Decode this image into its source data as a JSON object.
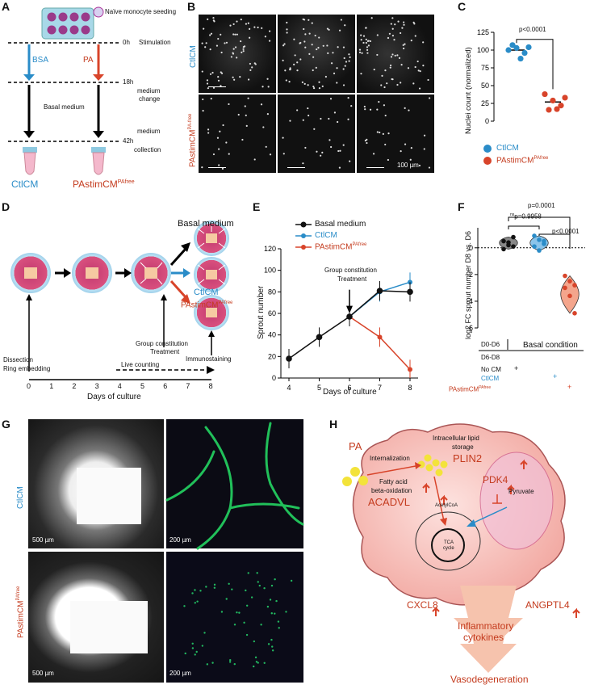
{
  "panels": {
    "A": "A",
    "B": "B",
    "C": "C",
    "D": "D",
    "E": "E",
    "F": "F",
    "G": "G",
    "H": "H"
  },
  "A": {
    "seeding": "Naïve monocyte seeding",
    "t0": "0h",
    "stim": "Stimulation",
    "bsa": "BSA",
    "pa": "PA",
    "t18": "18h",
    "medchange1": "medium",
    "medchange2": "change",
    "basal": "Basal medium",
    "t42": "42h",
    "medcoll1": "medium",
    "medcoll2": "collection",
    "ctl": "CtlCM",
    "pastim": "PAstimCM",
    "pastim_sup": "PAfree"
  },
  "B": {
    "row1": "CtlCM",
    "row2": "PAstimCM",
    "row2_sup": "PA-free",
    "scale": "100 µm"
  },
  "C": {
    "ylabel": "Nuclei count (normalized)",
    "pval": "p<0.0001",
    "legend_ctl": "CtlCM",
    "legend_pa": "PAstimCM",
    "legend_pa_sup": "PAfree"
  },
  "D": {
    "basal": "Basal medium",
    "ctl": "CtlCM",
    "pastim": "PAstimCM",
    "pastim_sup": "PAfree",
    "dissection": "Dissection",
    "ring": "Ring embedding",
    "live": "Live counting",
    "group": "Group constitution",
    "treat": "Treatment",
    "immuno": "Immunostaining",
    "xlabel": "Days of culture",
    "days": [
      "0",
      "1",
      "2",
      "3",
      "4",
      "5",
      "6",
      "7",
      "8"
    ]
  },
  "E": {
    "ylabel": "Sprout number",
    "xlabel": "Days of culture",
    "legend": [
      "Basal medium",
      "CtlCM",
      "PAstimCM"
    ],
    "legend_sup": "PAfree",
    "annot1": "Group constitution",
    "annot2": "Treatment"
  },
  "F": {
    "ylabel": "log2 FC sprout number D8 vs. D6",
    "p1": "p=0.0001",
    "p2": "p=0.9958",
    "p2_pre": "ns",
    "p3": "p<0.0001",
    "d0": "D0-D6",
    "d6": "D6-D8",
    "basal": "Basal condition",
    "nocm": "No CM",
    "ctl": "CtlCM",
    "pastim": "PAstimCM",
    "pastim_sup": "PAfree"
  },
  "G": {
    "row1": "CtlCM",
    "row2": "PAstimCM",
    "row2_sup": "PAfree",
    "s500": "500 µm",
    "s200": "200 µm"
  },
  "H": {
    "pa": "PA",
    "intern": "Internalization",
    "ils1": "Intracellular lipid",
    "ils2": "storage",
    "plin2": "PLIN2",
    "fao1": "Fatty acid",
    "fao2": "beta-oxidation",
    "acadvl": "ACADVL",
    "pdk4": "PDK4",
    "pyruvate": "Pyruvate",
    "acetyl": "AcetylCoA",
    "tca1": "TCA",
    "tca2": "cycle",
    "cxcl8": "CXCL8",
    "angptl4": "ANGPTL4",
    "infl1": "Inflammatory",
    "infl2": "cytokines",
    "vaso": "Vasodegeneration"
  },
  "chart_data": [
    {
      "type": "scatter",
      "panel": "C",
      "ylabel": "Nuclei count (normalized)",
      "ylim": [
        0,
        125
      ],
      "yticks": [
        0,
        25,
        50,
        75,
        100,
        125
      ],
      "series": [
        {
          "name": "CtlCM",
          "color": "#2a8cc8",
          "values": [
            100,
            103,
            96,
            107,
            88,
            104
          ],
          "mean": 100
        },
        {
          "name": "PAstimCMPAfree",
          "color": "#d8442a",
          "values": [
            38,
            29,
            22,
            16,
            17,
            33
          ],
          "mean": 27
        }
      ],
      "annotation": "p<0.0001"
    },
    {
      "type": "line",
      "panel": "E",
      "xlabel": "Days of culture",
      "ylabel": "Sprout number",
      "x": [
        4,
        5,
        6,
        7,
        8
      ],
      "ylim": [
        0,
        120
      ],
      "yticks": [
        0,
        20,
        40,
        60,
        80,
        100,
        120
      ],
      "series": [
        {
          "name": "Basal medium",
          "color": "#111111",
          "x": [
            4,
            5,
            6,
            7,
            8
          ],
          "values": [
            18,
            38,
            57,
            81,
            80
          ]
        },
        {
          "name": "CtlCM",
          "color": "#2a8cc8",
          "x": [
            6,
            7,
            8
          ],
          "values": [
            57,
            80,
            89
          ]
        },
        {
          "name": "PAstimCMPAfree",
          "color": "#d8442a",
          "x": [
            6,
            7,
            8
          ],
          "values": [
            57,
            38,
            8
          ]
        }
      ]
    },
    {
      "type": "violin",
      "panel": "F",
      "ylabel": "log2 FC sprout number D8 vs. D6",
      "ylim": [
        -6,
        1.5
      ],
      "yticks": [
        0,
        -2,
        -4,
        -6
      ],
      "groups": [
        {
          "name": "No CM",
          "color": "#111111",
          "values": [
            0.5,
            0.2,
            0.8,
            -0.1,
            0.4,
            0.1
          ]
        },
        {
          "name": "CtlCM",
          "color": "#2a8cc8",
          "values": [
            0.9,
            0.6,
            0.3,
            0.1,
            -0.2,
            0.5
          ]
        },
        {
          "name": "PAstimCMPAfree",
          "color": "#d8442a",
          "values": [
            -2.1,
            -2.5,
            -2.8,
            -3.0,
            -3.6,
            -4.9
          ]
        }
      ],
      "annotations": [
        "p=0.0001",
        "ns p=0.9958",
        "p<0.0001"
      ]
    }
  ]
}
